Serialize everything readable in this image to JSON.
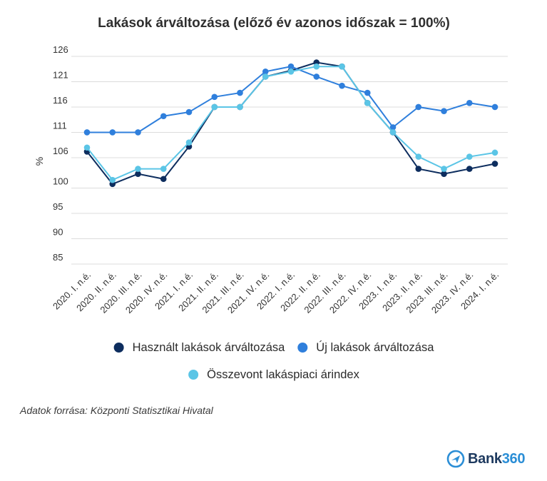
{
  "colors": {
    "series_used": "#0d2d5e",
    "series_new": "#2f7fdc",
    "series_combined": "#5bc5e6",
    "grid": "#dcdcdc",
    "logo_primary": "#1e3a5f",
    "logo_accent": "#2b8ed6"
  },
  "source_text": "Adatok forrása: Központi Statisztikai Hivatal",
  "logo": {
    "icon": "plane-badge-icon",
    "text_main": "Bank",
    "text_accent": "360"
  },
  "chart_data": {
    "type": "line",
    "title": "Lakások árváltozása (előző év azonos időszak = 100%)",
    "xlabel": "",
    "ylabel": "%",
    "ylim": [
      85,
      126
    ],
    "y_ticks": [
      85,
      90,
      95,
      100,
      106,
      111,
      116,
      121,
      126
    ],
    "grid": true,
    "legend_position": "bottom",
    "categories": [
      "2020. I. n.é.",
      "2020. II. n.é.",
      "2020. III. n.é.",
      "2020. IV. n.é.",
      "2021. I. n.é.",
      "2021. II. n.é.",
      "2021. III. n.é.",
      "2021. IV. n.é.",
      "2022. I. n.é.",
      "2022. II. n.é.",
      "2022. III. n.é.",
      "2022. IV. n.é.",
      "2023. I. n.é.",
      "2023. II. n.é.",
      "2023. III. n.é.",
      "2023. IV. n.é.",
      "2024. I. n.é."
    ],
    "series": [
      {
        "name": "Használt lakások árváltozása",
        "color": "#0d2d5e",
        "values": [
          107.2,
          100.8,
          102.8,
          101.8,
          108.2,
          116,
          116,
          122,
          123.2,
          124.8,
          124,
          116.8,
          111,
          103.8,
          102.8,
          103.8,
          104.8
        ]
      },
      {
        "name": "Új lakások árváltozása",
        "color": "#2f7fdc",
        "values": [
          111,
          111,
          111,
          114.2,
          115,
          118,
          118.8,
          123,
          124,
          122,
          120.2,
          118.8,
          112,
          116,
          115.2,
          116.8,
          116
        ]
      },
      {
        "name": "Összevont lakáspiaci árindex",
        "color": "#5bc5e6",
        "values": [
          108,
          101.6,
          103.8,
          103.8,
          109,
          116,
          116,
          122,
          123,
          124,
          124,
          116.8,
          111,
          106.2,
          103.8,
          106.2,
          107
        ]
      }
    ],
    "legend_rows": [
      [
        0,
        1
      ],
      [
        2
      ]
    ]
  }
}
